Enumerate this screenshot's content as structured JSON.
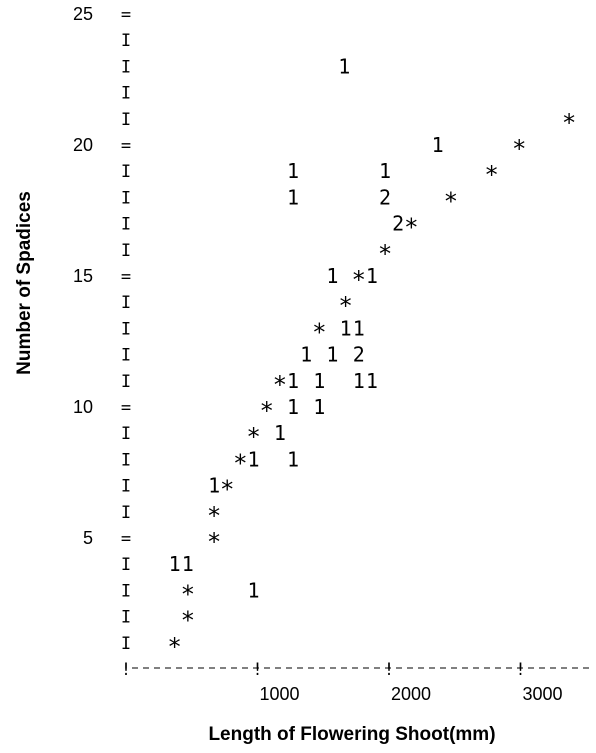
{
  "chart_data": {
    "type": "scatter",
    "title": "",
    "xlabel": "Length of Flowering Shoot(mm)",
    "ylabel": "Number of Spadices",
    "xlim": [
      0,
      3500
    ],
    "ylim": [
      0,
      25
    ],
    "x_ticks": [
      0,
      1000,
      2000,
      3000
    ],
    "x_tick_labels": [
      "",
      "1000",
      "2000",
      "3000"
    ],
    "y_ticks": [
      5,
      10,
      15,
      20,
      25
    ],
    "y_tick_labels": [
      "5",
      "10",
      "15",
      "20",
      "25"
    ],
    "grid": false,
    "axis_style": "character-plot",
    "points": [
      {
        "x": 1660,
        "y": 23,
        "symbol": "1"
      },
      {
        "x": 3370,
        "y": 21,
        "symbol": "*"
      },
      {
        "x": 2370,
        "y": 20,
        "symbol": "1"
      },
      {
        "x": 2990,
        "y": 20,
        "symbol": "*"
      },
      {
        "x": 1270,
        "y": 19,
        "symbol": "1"
      },
      {
        "x": 1970,
        "y": 19,
        "symbol": "1"
      },
      {
        "x": 2780,
        "y": 19,
        "symbol": "*"
      },
      {
        "x": 1270,
        "y": 18,
        "symbol": "1"
      },
      {
        "x": 1970,
        "y": 18,
        "symbol": "2"
      },
      {
        "x": 2470,
        "y": 18,
        "symbol": "*"
      },
      {
        "x": 2070,
        "y": 17,
        "symbol": "2"
      },
      {
        "x": 2170,
        "y": 17,
        "symbol": "*"
      },
      {
        "x": 1970,
        "y": 16,
        "symbol": "*"
      },
      {
        "x": 1570,
        "y": 15,
        "symbol": "1"
      },
      {
        "x": 1770,
        "y": 15,
        "symbol": "*"
      },
      {
        "x": 1870,
        "y": 15,
        "symbol": "1"
      },
      {
        "x": 1670,
        "y": 14,
        "symbol": "*"
      },
      {
        "x": 1470,
        "y": 13,
        "symbol": "*"
      },
      {
        "x": 1670,
        "y": 13,
        "symbol": "1"
      },
      {
        "x": 1770,
        "y": 13,
        "symbol": "1"
      },
      {
        "x": 1370,
        "y": 12,
        "symbol": "1"
      },
      {
        "x": 1570,
        "y": 12,
        "symbol": "1"
      },
      {
        "x": 1770,
        "y": 12,
        "symbol": "2"
      },
      {
        "x": 1170,
        "y": 11,
        "symbol": "*"
      },
      {
        "x": 1270,
        "y": 11,
        "symbol": "1"
      },
      {
        "x": 1470,
        "y": 11,
        "symbol": "1"
      },
      {
        "x": 1770,
        "y": 11,
        "symbol": "1"
      },
      {
        "x": 1870,
        "y": 11,
        "symbol": "1"
      },
      {
        "x": 1070,
        "y": 10,
        "symbol": "*"
      },
      {
        "x": 1270,
        "y": 10,
        "symbol": "1"
      },
      {
        "x": 1470,
        "y": 10,
        "symbol": "1"
      },
      {
        "x": 970,
        "y": 9,
        "symbol": "*"
      },
      {
        "x": 1170,
        "y": 9,
        "symbol": "1"
      },
      {
        "x": 870,
        "y": 8,
        "symbol": "*"
      },
      {
        "x": 970,
        "y": 8,
        "symbol": "1"
      },
      {
        "x": 1270,
        "y": 8,
        "symbol": "1"
      },
      {
        "x": 670,
        "y": 7,
        "symbol": "1"
      },
      {
        "x": 770,
        "y": 7,
        "symbol": "*"
      },
      {
        "x": 670,
        "y": 6,
        "symbol": "*"
      },
      {
        "x": 670,
        "y": 5,
        "symbol": "*"
      },
      {
        "x": 370,
        "y": 4,
        "symbol": "1"
      },
      {
        "x": 470,
        "y": 4,
        "symbol": "1"
      },
      {
        "x": 470,
        "y": 3,
        "symbol": "*"
      },
      {
        "x": 970,
        "y": 3,
        "symbol": "1"
      },
      {
        "x": 470,
        "y": 2,
        "symbol": "*"
      },
      {
        "x": 370,
        "y": 1,
        "symbol": "*"
      }
    ]
  }
}
